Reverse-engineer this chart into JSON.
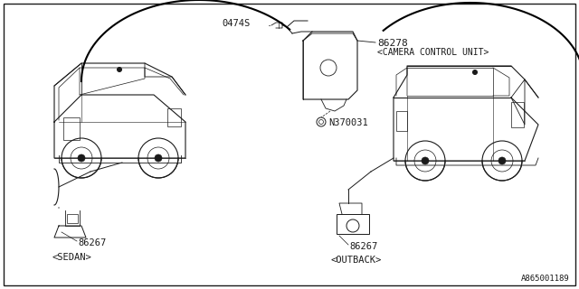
{
  "bg_color": "#ffffff",
  "border_color": "#000000",
  "line_color": "#1a1a1a",
  "text_color": "#1a1a1a",
  "part_number_bottom_right": "A865001189",
  "label_86278": "86278",
  "label_0474S": "0474S",
  "label_N370031": "N370031",
  "label_86267_sedan": "86267",
  "label_86267_outback": "86267",
  "label_camera_control": "<CAMERA CONTROL UNIT>",
  "label_sedan": "<SEDAN>",
  "label_outback": "<OUTBACK>"
}
